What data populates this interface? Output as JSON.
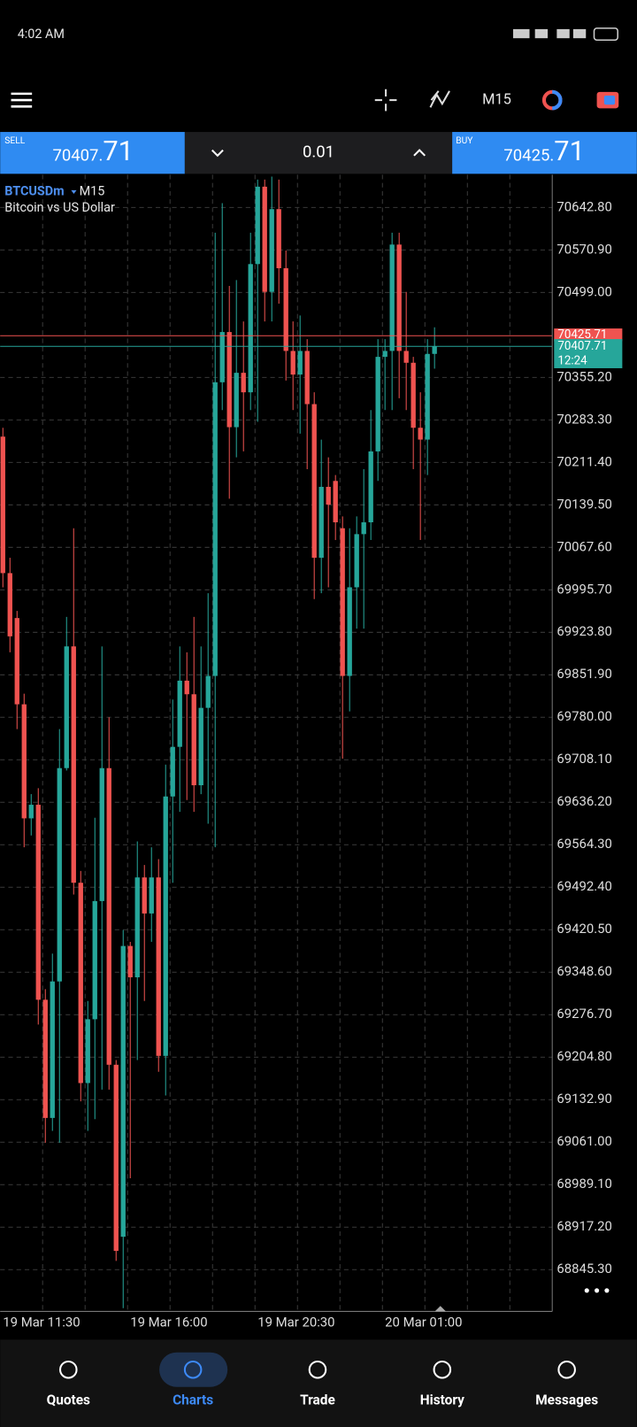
{
  "status_bar": {
    "time": "4:02 AM"
  },
  "toolbar": {
    "timeframe": "M15"
  },
  "trade_panel": {
    "sell": {
      "label": "SELL",
      "price": "70407.",
      "pips": "71"
    },
    "volume": "0.01",
    "buy": {
      "label": "BUY",
      "price": "70425.",
      "pips": "71"
    }
  },
  "chart_data": {
    "type": "candlestick",
    "symbol": "BTCUSDm",
    "timeframe": "M15",
    "title": "Bitcoin vs US Dollar",
    "categories": [
      "19 Mar 11:30",
      null,
      null,
      null,
      null,
      null,
      null,
      null,
      null,
      null,
      null,
      null,
      null,
      null,
      null,
      null,
      null,
      null,
      "19 Mar 16:00",
      null,
      null,
      null,
      null,
      null,
      null,
      null,
      null,
      null,
      null,
      null,
      null,
      null,
      null,
      null,
      null,
      null,
      "19 Mar 20:30",
      null,
      null,
      null,
      null,
      null,
      null,
      null,
      null,
      null,
      null,
      null,
      null,
      null,
      null,
      null,
      null,
      null,
      "20 Mar 01:00",
      null,
      null,
      null,
      null,
      null,
      null,
      null
    ],
    "open": [
      70255,
      70024,
      69948,
      69802,
      69609,
      69632,
      69302,
      69102,
      69333,
      69694,
      69900,
      69500,
      69161,
      69269,
      69469,
      69694,
      69192,
      68901,
      69393,
      69340,
      69509,
      69448,
      69509,
      69207,
      69646,
      69730,
      69842,
      69819,
      69665,
      69796,
      69850,
      70347,
      70432,
      70271,
      70363,
      70330,
      70547,
      70678,
      70500,
      70640,
      70540,
      70400,
      70360,
      70400,
      70310,
      70050,
      70170,
      70180,
      70100,
      69850,
      70000,
      70090,
      70110,
      70230,
      70390,
      70400,
      70580,
      70400,
      70380,
      70270,
      70250,
      70395
    ],
    "high": [
      70270,
      70050,
      69960,
      69820,
      69650,
      69660,
      69320,
      69380,
      69760,
      69950,
      70100,
      69520,
      69300,
      69610,
      69900,
      69780,
      69200,
      69420,
      69400,
      69570,
      69530,
      69560,
      69540,
      69700,
      69810,
      69900,
      69890,
      69950,
      69900,
      69990,
      70600,
      70650,
      70510,
      70520,
      70450,
      70600,
      70690,
      70690,
      70695,
      70690,
      70570,
      70450,
      70460,
      70420,
      70330,
      70250,
      70220,
      70190,
      70120,
      70100,
      70120,
      70200,
      70300,
      70420,
      70420,
      70600,
      70600,
      70500,
      70390,
      70330,
      70420,
      70440
    ],
    "low": [
      70000,
      69890,
      69760,
      69560,
      69580,
      69260,
      69060,
      69080,
      69060,
      69690,
      69480,
      69130,
      69080,
      69100,
      69150,
      69150,
      68860,
      68780,
      69000,
      69200,
      69300,
      69400,
      69180,
      69140,
      69500,
      69620,
      69640,
      69620,
      69650,
      69600,
      69560,
      70300,
      70150,
      70220,
      70230,
      70300,
      70280,
      70450,
      70450,
      70480,
      70350,
      70300,
      70260,
      70200,
      69980,
      69990,
      70000,
      70080,
      69710,
      69790,
      69930,
      69930,
      70080,
      70180,
      70300,
      70300,
      70320,
      70300,
      70200,
      70080,
      70190,
      70370
    ],
    "close": [
      70024,
      69917,
      69802,
      69609,
      69632,
      69302,
      69102,
      69333,
      69694,
      69900,
      69500,
      69161,
      69269,
      69469,
      69694,
      69192,
      68877,
      69393,
      69340,
      69509,
      69448,
      69509,
      69207,
      69646,
      69730,
      69842,
      69819,
      69665,
      69796,
      69850,
      70347,
      70432,
      70271,
      70363,
      70330,
      70547,
      70678,
      70500,
      70640,
      70540,
      70400,
      70360,
      70400,
      70310,
      70050,
      70170,
      70140,
      70110,
      69850,
      70000,
      70090,
      70110,
      70230,
      70390,
      70400,
      70580,
      70400,
      70380,
      70270,
      70250,
      70395,
      70407.71
    ],
    "up_color": "#26a69a",
    "down_color": "#ef5350",
    "ylim": [
      68776.1,
      70698.2
    ],
    "yticks": [
      {
        "value": 70642.8,
        "label": "70642.80"
      },
      {
        "value": 70570.9,
        "label": "70570.90"
      },
      {
        "value": 70499,
        "label": "70499.00"
      },
      {
        "value": 70355.2,
        "label": "70355.20"
      },
      {
        "value": 70283.3,
        "label": "70283.30"
      },
      {
        "value": 70211.4,
        "label": "70211.40"
      },
      {
        "value": 70139.5,
        "label": "70139.50"
      },
      {
        "value": 70067.6,
        "label": "70067.60"
      },
      {
        "value": 69995.7,
        "label": "69995.70"
      },
      {
        "value": 69923.8,
        "label": "69923.80"
      },
      {
        "value": 69851.9,
        "label": "69851.90"
      },
      {
        "value": 69780,
        "label": "69780.00"
      },
      {
        "value": 69708.1,
        "label": "69708.10"
      },
      {
        "value": 69636.2,
        "label": "69636.20"
      },
      {
        "value": 69564.3,
        "label": "69564.30"
      },
      {
        "value": 69492.4,
        "label": "69492.40"
      },
      {
        "value": 69420.5,
        "label": "69420.50"
      },
      {
        "value": 69348.6,
        "label": "69348.60"
      },
      {
        "value": 69276.7,
        "label": "69276.70"
      },
      {
        "value": 69204.8,
        "label": "69204.80"
      },
      {
        "value": 69132.9,
        "label": "69132.90"
      },
      {
        "value": 69061,
        "label": "69061.00"
      },
      {
        "value": 68989.1,
        "label": "68989.10"
      },
      {
        "value": 68917.2,
        "label": "68917.20"
      },
      {
        "value": 68845.3,
        "label": "68845.30"
      }
    ],
    "grid": true,
    "ask": 70425.71,
    "bid": 70407.71,
    "countdown": "12:24"
  },
  "nav": {
    "items": [
      "Quotes",
      "Charts",
      "Trade",
      "History",
      "Messages"
    ],
    "active": 1
  }
}
